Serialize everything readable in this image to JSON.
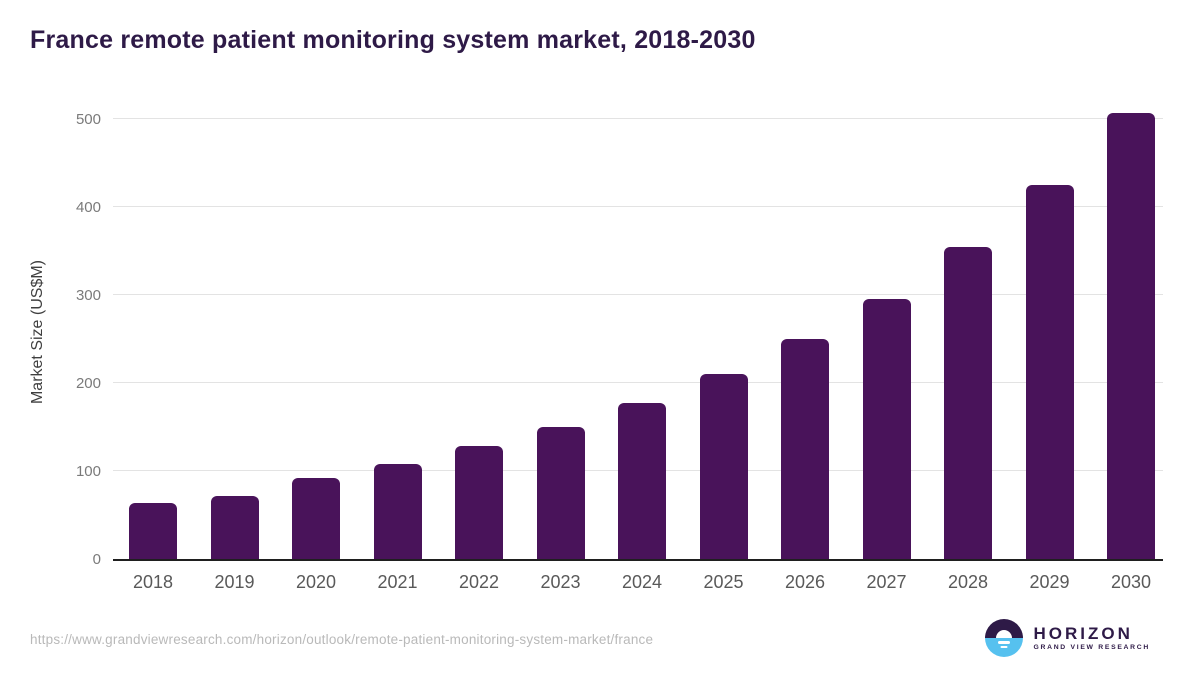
{
  "header": {
    "title": "France remote patient monitoring system market, 2018-2030"
  },
  "chart_data": {
    "type": "bar",
    "title": "France remote patient monitoring system market, 2018-2030",
    "categories": [
      "2018",
      "2019",
      "2020",
      "2021",
      "2022",
      "2023",
      "2024",
      "2025",
      "2026",
      "2027",
      "2028",
      "2029",
      "2030"
    ],
    "values": [
      64,
      72,
      92,
      108,
      128,
      150,
      177,
      210,
      250,
      296,
      355,
      425,
      507
    ],
    "xlabel": "",
    "ylabel": "Market Size (US$M)",
    "ylim": [
      0,
      517
    ],
    "yticks": [
      0,
      100,
      200,
      300,
      400,
      500
    ],
    "grid": "horizontal",
    "legend": "none",
    "bar_color": "#49135A"
  },
  "footer": {
    "url": "https://www.grandviewresearch.com/horizon/outlook/remote-patient-monitoring-system-market/france",
    "logo": {
      "name": "HORIZON",
      "subtitle": "GRAND VIEW RESEARCH",
      "mark_top_color": "#2E1A47",
      "mark_bottom_color": "#56C1EF"
    }
  },
  "colors": {
    "title_text": "#2E1A47",
    "axis_tick_text": "#7A7A7A",
    "x_tick_text": "#595959",
    "axis_line": "#1F1F1F",
    "gridline": "#E3E3E3",
    "footer_url_text": "#B9B9B9"
  }
}
